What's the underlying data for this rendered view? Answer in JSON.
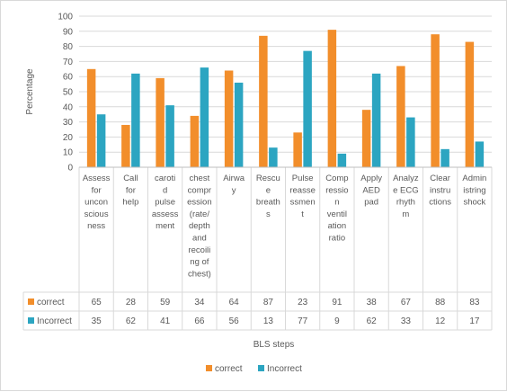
{
  "chart_data": {
    "type": "bar",
    "ylabel": "Percentage",
    "xlabel": "BLS steps",
    "ylim": [
      0,
      100
    ],
    "yticks": [
      0,
      10,
      20,
      30,
      40,
      50,
      60,
      70,
      80,
      90,
      100
    ],
    "grid": true,
    "legend_position": "bottom",
    "data_table": true,
    "categories": [
      [
        "Assess",
        "for",
        "uncon",
        "scious",
        "ness"
      ],
      [
        "Call",
        "for",
        "help"
      ],
      [
        "caroti",
        "d",
        "pulse",
        "assess",
        "ment"
      ],
      [
        "chest",
        "compr",
        "ession",
        "(rate/",
        "depth",
        "and",
        "recoili",
        "ng of",
        "chest)"
      ],
      [
        "Airwa",
        "y"
      ],
      [
        "Rescu",
        "e",
        "breath",
        "s"
      ],
      [
        "Pulse",
        "reasse",
        "ssmen",
        "t"
      ],
      [
        "Comp",
        "ressio",
        "n",
        "ventil",
        "ation",
        "ratio"
      ],
      [
        "Apply",
        "AED",
        "pad"
      ],
      [
        "Analyz",
        "e ECG",
        "rhyth",
        "m"
      ],
      [
        "Clear",
        "instru",
        "ctions"
      ],
      [
        "Admin",
        "istring",
        "shock"
      ]
    ],
    "series": [
      {
        "name": "correct",
        "color": "#F28E2B",
        "values": [
          65,
          28,
          59,
          34,
          64,
          87,
          23,
          91,
          38,
          67,
          88,
          83
        ]
      },
      {
        "name": "Incorrect",
        "color": "#2CA5C1",
        "values": [
          35,
          62,
          41,
          66,
          56,
          13,
          77,
          9,
          62,
          33,
          12,
          17
        ]
      }
    ]
  }
}
